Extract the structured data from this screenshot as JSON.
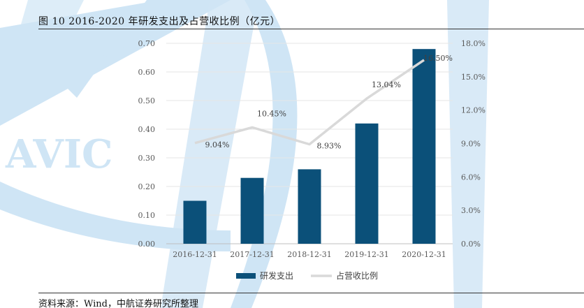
{
  "title": "图 10 2016-2020 年研发支出及占营收比例（亿元）",
  "source": "资料来源：Wind，中航证券研究所整理",
  "watermark": "AVIC",
  "colors": {
    "bar": "#0b5079",
    "line": "#d9d9d9",
    "watermark": "#cfe5f5"
  },
  "chart_data": {
    "type": "bar+line",
    "categories": [
      "2016-12-31",
      "2017-12-31",
      "2018-12-31",
      "2019-12-31",
      "2020-12-31"
    ],
    "series": [
      {
        "name": "研发支出",
        "type": "bar",
        "axis": "left",
        "values": [
          0.15,
          0.23,
          0.26,
          0.42,
          0.68
        ]
      },
      {
        "name": "占营收比例",
        "type": "line",
        "axis": "right",
        "values": [
          9.04,
          10.45,
          8.93,
          13.04,
          16.5
        ],
        "labels": [
          "9.04%",
          "10.45%",
          "8.93%",
          "13.04%",
          "16.50%"
        ]
      }
    ],
    "ylim_left": [
      0,
      0.7
    ],
    "yticks_left": [
      "0.00",
      "0.10",
      "0.20",
      "0.30",
      "0.40",
      "0.50",
      "0.60",
      "0.70"
    ],
    "ylim_right": [
      0,
      18
    ],
    "yticks_right": [
      "0.0%",
      "3.0%",
      "6.0%",
      "9.0%",
      "12.0%",
      "15.0%",
      "18.0%"
    ],
    "grid": true,
    "legend": "bottom"
  }
}
